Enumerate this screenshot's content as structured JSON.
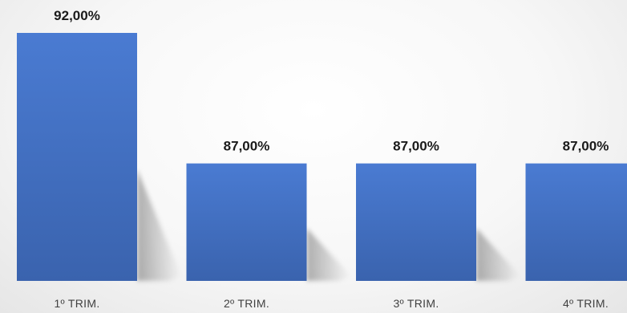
{
  "chart_data": {
    "type": "bar",
    "categories": [
      "1º TRIM.",
      "2º TRIM.",
      "3º TRIM.",
      "4º TRIM."
    ],
    "values": [
      92.0,
      87.0,
      87.0,
      87.0
    ],
    "value_labels": [
      "92,00%",
      "87,00%",
      "87,00%",
      "87,00%"
    ],
    "title": "",
    "xlabel": "",
    "ylabel": "",
    "ylim": [
      82.5,
      92.0
    ],
    "grid": false,
    "legend": "none",
    "colors": {
      "bar": "#4472c4",
      "bar_light": "#4a7bd2",
      "bar_dark": "#3a63ae",
      "data_label": "#1a1a1a",
      "tick_label": "#404040"
    }
  }
}
